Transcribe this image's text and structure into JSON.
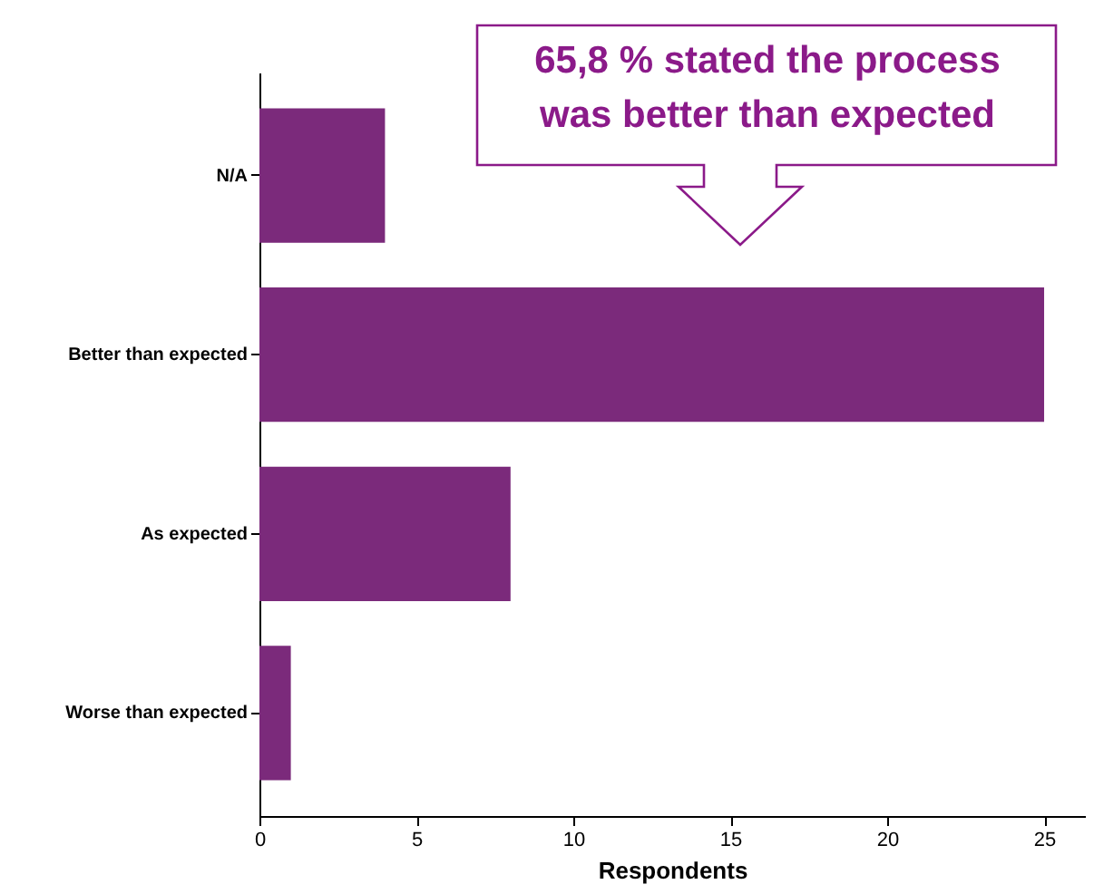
{
  "chart_data": {
    "type": "bar",
    "orientation": "horizontal",
    "xlabel": "Respondents",
    "categories": [
      "N/A",
      "Better than expected",
      "As expected",
      "Worse than expected"
    ],
    "values": [
      4,
      25,
      8,
      1
    ],
    "color": "#7b2a7b",
    "xlim": [
      0,
      26.3
    ],
    "xticks": [
      0,
      5,
      10,
      15,
      20,
      25
    ],
    "grid": false,
    "annotations": [
      "65,8 % stated the process was better than expected"
    ]
  }
}
